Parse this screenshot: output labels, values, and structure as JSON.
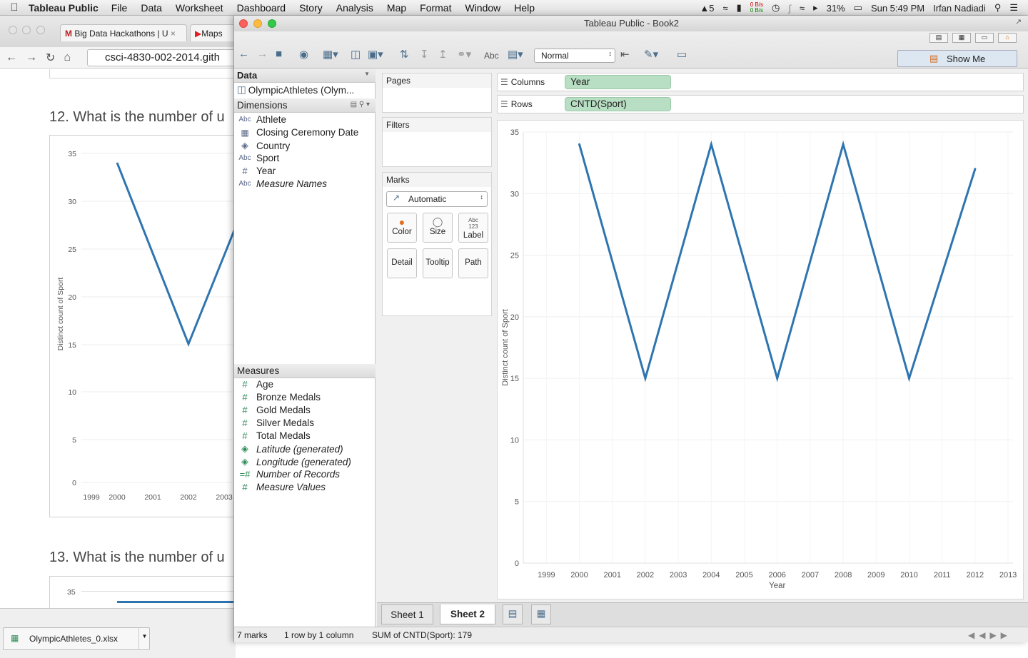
{
  "menubar": {
    "app": "Tableau Public",
    "items": [
      "File",
      "Data",
      "Worksheet",
      "Dashboard",
      "Story",
      "Analysis",
      "Map",
      "Format",
      "Window",
      "Help"
    ],
    "adobe_count": "5",
    "net_up": "0 B/s",
    "net_down": "0 B/s",
    "battery": "31%",
    "clock": "Sun 5:49 PM",
    "user": "Irfan Nadiadi"
  },
  "browser": {
    "tab1": "Big Data Hackathons | U",
    "tab2": "Maps",
    "url": "csci-4830-002-2014.gith",
    "q12": "12. What is the number of u",
    "q13": "13. What is the number of u",
    "chart_ylabel": "Distinct count of Sport",
    "download": "OlympicAthletes_0.xlsx"
  },
  "window": {
    "title": "Tableau Public - Book2",
    "zoom_select": "Normal",
    "show_me": "Show Me",
    "tool_abc": "Abc"
  },
  "data_pane": {
    "header": "Data",
    "datasource": "OlympicAthletes (Olym...",
    "dimensions_label": "Dimensions",
    "measures_label": "Measures",
    "dimensions": [
      {
        "name": "Athlete",
        "icon": "Abc"
      },
      {
        "name": "Closing Ceremony Date",
        "icon": "cal"
      },
      {
        "name": "Country",
        "icon": "globe"
      },
      {
        "name": "Sport",
        "icon": "Abc"
      },
      {
        "name": "Year",
        "icon": "#"
      },
      {
        "name": "Measure Names",
        "icon": "Abc"
      }
    ],
    "measures": [
      {
        "name": "Age",
        "icon": "#"
      },
      {
        "name": "Bronze Medals",
        "icon": "#"
      },
      {
        "name": "Gold Medals",
        "icon": "#"
      },
      {
        "name": "Silver Medals",
        "icon": "#"
      },
      {
        "name": "Total Medals",
        "icon": "#"
      },
      {
        "name": "Latitude (generated)",
        "icon": "globe"
      },
      {
        "name": "Longitude (generated)",
        "icon": "globe"
      },
      {
        "name": "Number of Records",
        "icon": "=#"
      },
      {
        "name": "Measure Values",
        "icon": "#"
      }
    ]
  },
  "cards": {
    "pages": "Pages",
    "filters": "Filters",
    "marks": "Marks",
    "mark_type": "Automatic",
    "buttons": {
      "color": "Color",
      "size": "Size",
      "label": "Label",
      "label_icon": "Abc 123",
      "detail": "Detail",
      "tooltip": "Tooltip",
      "path": "Path"
    }
  },
  "shelves": {
    "columns_label": "Columns",
    "columns_pill": "Year",
    "rows_label": "Rows",
    "rows_pill": "CNTD(Sport)"
  },
  "sheets": {
    "sheet1": "Sheet 1",
    "sheet2": "Sheet 2"
  },
  "status": {
    "marks": "7 marks",
    "dims": "1 row by 1 column",
    "sum": "SUM of CNTD(Sport): 179"
  },
  "colors": {
    "line": "#2e75b0",
    "pill": "#b8dfc3"
  },
  "chart_data": {
    "type": "line",
    "x": [
      2000,
      2002,
      2004,
      2006,
      2008,
      2010,
      2012
    ],
    "values": [
      34,
      15,
      34,
      15,
      34,
      15,
      32
    ],
    "xticks": [
      1999,
      2000,
      2001,
      2002,
      2003,
      2004,
      2005,
      2006,
      2007,
      2008,
      2009,
      2010,
      2011,
      2012,
      2013
    ],
    "yticks": [
      0,
      5,
      10,
      15,
      20,
      25,
      30,
      35
    ],
    "xlabel": "Year",
    "ylabel": "Distinct count of Sport",
    "xlim": [
      1999,
      2013
    ],
    "ylim": [
      0,
      35
    ],
    "grid": true
  }
}
